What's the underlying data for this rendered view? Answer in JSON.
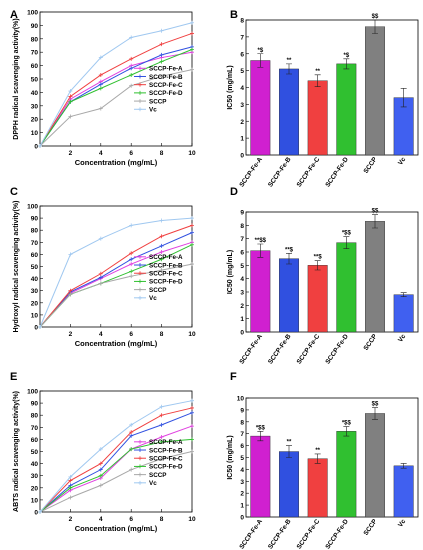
{
  "chart_data": [
    {
      "panel": "A",
      "type": "line",
      "xlabel": "Concentration (mg/mL)",
      "ylabel": "DPPH radical scavenging activity(%)",
      "x": [
        0,
        2,
        4,
        6,
        8,
        10
      ],
      "xticks": [
        "2",
        "4",
        "6",
        "8",
        "10"
      ],
      "ylim": [
        0,
        100
      ],
      "yticks": [
        "0",
        "10",
        "20",
        "30",
        "40",
        "50",
        "60",
        "70",
        "80",
        "90",
        "100"
      ],
      "legend": "center-right",
      "series": [
        {
          "name": "SCCP-Fe-A",
          "color": "#e040e0",
          "values": [
            0,
            35,
            48,
            60,
            66,
            70
          ]
        },
        {
          "name": "SCCP-Fe-B",
          "color": "#3050e0",
          "values": [
            0,
            33,
            46,
            58,
            68,
            74
          ]
        },
        {
          "name": "SCCP-Fe-C",
          "color": "#f04040",
          "values": [
            0,
            37,
            53,
            65,
            76,
            84
          ]
        },
        {
          "name": "SCCP-Fe-D",
          "color": "#30c030",
          "values": [
            0,
            33,
            43,
            53,
            63,
            72
          ]
        },
        {
          "name": "SCCP",
          "color": "#a8a8a8",
          "values": [
            0,
            22,
            28,
            45,
            52,
            57
          ]
        },
        {
          "name": "Vc",
          "color": "#a0c8f0",
          "values": [
            0,
            41,
            66,
            81,
            86,
            92
          ]
        }
      ]
    },
    {
      "panel": "B",
      "type": "bar",
      "ylabel": "IC50 (mg/mL)",
      "categories": [
        "SCCP-Fe-A",
        "SCCP-Fe-B",
        "SCCP-Fe-C",
        "SCCP-Fe-D",
        "SCCP",
        "Vc"
      ],
      "values": [
        5.6,
        5.1,
        4.4,
        5.4,
        7.6,
        3.4
      ],
      "errors": [
        0.4,
        0.3,
        0.35,
        0.3,
        0.4,
        0.55
      ],
      "annotations": [
        "*$",
        "**",
        "**",
        "*$",
        "$$",
        ""
      ],
      "colors": [
        "#d020d0",
        "#3050e0",
        "#f04040",
        "#30c030",
        "#808080",
        "#4060f0"
      ],
      "ylim": [
        0,
        8
      ],
      "yticks": [
        "0",
        "1",
        "2",
        "3",
        "4",
        "5",
        "6",
        "7",
        "8"
      ]
    },
    {
      "panel": "C",
      "type": "line",
      "xlabel": "Concentration (mg/mL)",
      "ylabel": "Hydroxyl radical scavenging activity(%)",
      "x": [
        0,
        2,
        4,
        6,
        8,
        10
      ],
      "xticks": [
        "2",
        "4",
        "6",
        "8",
        "10"
      ],
      "ylim": [
        0,
        100
      ],
      "yticks": [
        "0",
        "10",
        "20",
        "30",
        "40",
        "50",
        "60",
        "70",
        "80",
        "90",
        "100"
      ],
      "legend": "center-right",
      "series": [
        {
          "name": "SCCP-Fe-A",
          "color": "#e040e0",
          "values": [
            0,
            28,
            40,
            52,
            62,
            70
          ]
        },
        {
          "name": "SCCP-Fe-B",
          "color": "#3050e0",
          "values": [
            0,
            29,
            41,
            56,
            67,
            78
          ]
        },
        {
          "name": "SCCP-Fe-C",
          "color": "#f04040",
          "values": [
            0,
            30,
            44,
            61,
            75,
            84
          ]
        },
        {
          "name": "SCCP-Fe-D",
          "color": "#30c030",
          "values": [
            0,
            27,
            36,
            46,
            56,
            68
          ]
        },
        {
          "name": "SCCP",
          "color": "#a8a8a8",
          "values": [
            0,
            27,
            36,
            42,
            47,
            52
          ]
        },
        {
          "name": "Vc",
          "color": "#a0c8f0",
          "values": [
            0,
            60,
            73,
            84,
            88,
            90
          ]
        }
      ]
    },
    {
      "panel": "D",
      "type": "bar",
      "ylabel": "IC50 (mg/mL)",
      "categories": [
        "SCCP-Fe-A",
        "SCCP-Fe-B",
        "SCCP-Fe-C",
        "SCCP-Fe-D",
        "SCCP",
        "Vc"
      ],
      "values": [
        6.1,
        5.5,
        5.0,
        6.7,
        8.3,
        2.8
      ],
      "errors": [
        0.5,
        0.4,
        0.35,
        0.45,
        0.5,
        0.15
      ],
      "annotations": [
        "**$$",
        "**$",
        "**$",
        "*$$",
        "$$",
        ""
      ],
      "colors": [
        "#d020d0",
        "#3050e0",
        "#f04040",
        "#30c030",
        "#808080",
        "#4060f0"
      ],
      "ylim": [
        0,
        9
      ],
      "yticks": [
        "0",
        "1",
        "2",
        "3",
        "4",
        "5",
        "6",
        "7",
        "8",
        "9"
      ]
    },
    {
      "panel": "E",
      "type": "line",
      "xlabel": "Concentration (mg/mL)",
      "ylabel": "ABTS radical scavenging activity(%)",
      "x": [
        0,
        2,
        4,
        6,
        8,
        10
      ],
      "xticks": [
        "2",
        "4",
        "6",
        "8",
        "10"
      ],
      "ylim": [
        0,
        100
      ],
      "yticks": [
        "0",
        "10",
        "20",
        "30",
        "40",
        "50",
        "60",
        "70",
        "80",
        "90",
        "100"
      ],
      "legend": "center-right",
      "series": [
        {
          "name": "SCCP-Fe-A",
          "color": "#e040e0",
          "values": [
            0,
            18,
            28,
            52,
            62,
            71
          ]
        },
        {
          "name": "SCCP-Fe-B",
          "color": "#3050e0",
          "values": [
            0,
            22,
            35,
            63,
            72,
            82
          ]
        },
        {
          "name": "SCCP-Fe-C",
          "color": "#f04040",
          "values": [
            0,
            26,
            40,
            66,
            80,
            86
          ]
        },
        {
          "name": "SCCP-Fe-D",
          "color": "#30c030",
          "values": [
            0,
            20,
            30,
            52,
            58,
            60
          ]
        },
        {
          "name": "SCCP",
          "color": "#a8a8a8",
          "values": [
            0,
            12,
            22,
            35,
            44,
            50
          ]
        },
        {
          "name": "Vc",
          "color": "#a0c8f0",
          "values": [
            0,
            29,
            52,
            72,
            87,
            92
          ]
        }
      ]
    },
    {
      "panel": "F",
      "type": "bar",
      "ylabel": "IC50 (mg/mL)",
      "categories": [
        "SCCP-Fe-A",
        "SCCP-Fe-B",
        "SCCP-Fe-C",
        "SCCP-Fe-D",
        "SCCP",
        "Vc"
      ],
      "values": [
        6.8,
        5.5,
        4.9,
        7.2,
        8.7,
        4.3
      ],
      "errors": [
        0.4,
        0.5,
        0.4,
        0.4,
        0.5,
        0.2
      ],
      "annotations": [
        "*$$",
        "**",
        "**",
        "*$$",
        "$$",
        ""
      ],
      "colors": [
        "#d020d0",
        "#3050e0",
        "#f04040",
        "#30c030",
        "#808080",
        "#4060f0"
      ],
      "ylim": [
        0,
        10
      ],
      "yticks": [
        "0",
        "1",
        "2",
        "3",
        "4",
        "5",
        "6",
        "7",
        "8",
        "9",
        "10"
      ]
    }
  ]
}
